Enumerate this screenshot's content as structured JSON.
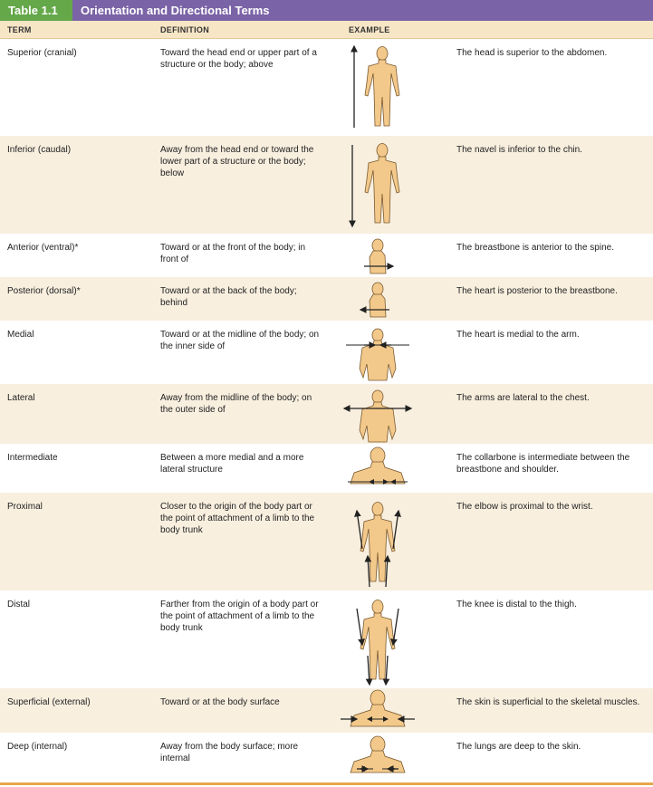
{
  "table": {
    "badge": "Table 1.1",
    "title": "Orientation and Directional Terms"
  },
  "columns": {
    "term": "TERM",
    "definition": "DEFINITION",
    "example": "EXAMPLE"
  },
  "rows": [
    {
      "term": "Superior (cranial)",
      "definition": "Toward the head end or upper part of a structure or the body; above",
      "example": "The head is superior to the abdomen.",
      "figure": "full-body-up-arrow"
    },
    {
      "term": "Inferior (caudal)",
      "definition": "Away from the head end or toward the lower part of a structure or the body; below",
      "example": "The navel is inferior to the chin.",
      "figure": "full-body-down-arrow"
    },
    {
      "term": "Anterior (ventral)*",
      "definition": "Toward or at the front of the body; in front of",
      "example": "The breastbone is anterior to the spine.",
      "figure": "side-torso-right-arrow"
    },
    {
      "term": "Posterior (dorsal)*",
      "definition": "Toward or at the back of the body; behind",
      "example": "The heart is posterior to the breastbone.",
      "figure": "side-torso-left-arrow"
    },
    {
      "term": "Medial",
      "definition": "Toward or at the midline of the body; on the inner side of",
      "example": "The heart is medial to the arm.",
      "figure": "torso-inward-arrows"
    },
    {
      "term": "Lateral",
      "definition": "Away from the midline of the body; on the outer side of",
      "example": "The arms are lateral to the chest.",
      "figure": "torso-outward-arrows"
    },
    {
      "term": "Intermediate",
      "definition": "Between a more medial and a more lateral structure",
      "example": "The collarbone is intermediate between the breastbone and shoulder.",
      "figure": "bust-intermediate-arrows"
    },
    {
      "term": "Proximal",
      "definition": "Closer to the origin of the body part or the point of attachment of a limb to the body trunk",
      "example": "The elbow is proximal to the wrist.",
      "figure": "full-body-limb-arrows-up"
    },
    {
      "term": "Distal",
      "definition": "Farther from the origin of a body part or the point of attachment of a limb to the body trunk",
      "example": "The knee is distal to the thigh.",
      "figure": "full-body-limb-arrows-down"
    },
    {
      "term": "Superficial (external)",
      "definition": "Toward or at the body surface",
      "example": "The skin is superficial to the skeletal muscles.",
      "figure": "bust-surface-arrows"
    },
    {
      "term": "Deep (internal)",
      "definition": "Away from the body surface; more internal",
      "example": "The lungs are deep to the skin.",
      "figure": "bust-deep-arrows"
    }
  ],
  "colors": {
    "title_bar": "#7a63a6",
    "badge": "#65a84a",
    "header": "#f7e6c6",
    "row_shade": "#f8efdf",
    "skin": "#f3c98b",
    "bottom_rule": "#e8a74c"
  }
}
